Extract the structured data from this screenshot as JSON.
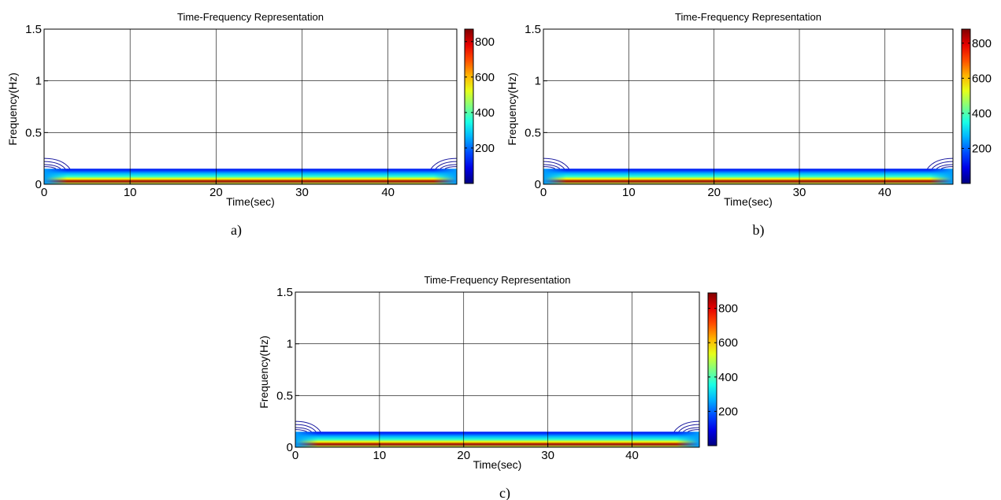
{
  "chart_data": [
    {
      "type": "heatmap",
      "title": "Time-Frequency Representation",
      "xlabel": "Time(sec)",
      "ylabel": "Frequency(Hz)",
      "caption": "a)",
      "xlim": [
        0,
        48
      ],
      "ylim": [
        0,
        1.5
      ],
      "xticks": [
        0,
        10,
        20,
        30,
        40
      ],
      "yticks": [
        0,
        0.5,
        1,
        1.5
      ],
      "grid": true,
      "colormap": "jet",
      "colorbar": {
        "ticks": [
          200,
          400,
          600,
          800
        ],
        "range": [
          0,
          870
        ]
      },
      "energy_band": {
        "freq_min": 0,
        "freq_max": 0.15,
        "peak_freq": 0.03,
        "peak_value": 850,
        "time_start": 0,
        "time_end": 48
      },
      "edge_contour_time_extent": 3
    },
    {
      "type": "heatmap",
      "title": "Time-Frequency Representation",
      "xlabel": "Time(sec)",
      "ylabel": "Frequency(Hz)",
      "caption": "b)",
      "xlim": [
        0,
        48
      ],
      "ylim": [
        0,
        1.5
      ],
      "xticks": [
        0,
        10,
        20,
        30,
        40
      ],
      "yticks": [
        0,
        0.5,
        1,
        1.5
      ],
      "grid": true,
      "colormap": "jet",
      "colorbar": {
        "ticks": [
          200,
          400,
          600,
          800
        ],
        "range": [
          0,
          880
        ]
      },
      "energy_band": {
        "freq_min": 0,
        "freq_max": 0.15,
        "peak_freq": 0.03,
        "peak_value": 860,
        "time_start": 0,
        "time_end": 48
      },
      "edge_contour_time_extent": 3
    },
    {
      "type": "heatmap",
      "title": "Time-Frequency Representation",
      "xlabel": "Time(sec)",
      "ylabel": "Frequency(Hz)",
      "caption": "c)",
      "xlim": [
        0,
        48
      ],
      "ylim": [
        0,
        1.5
      ],
      "xticks": [
        0,
        10,
        20,
        30,
        40
      ],
      "yticks": [
        0,
        0.5,
        1,
        1.5
      ],
      "grid": true,
      "colormap": "jet",
      "colorbar": {
        "ticks": [
          200,
          400,
          600,
          800
        ],
        "range": [
          0,
          890
        ]
      },
      "energy_band": {
        "freq_min": 0,
        "freq_max": 0.15,
        "peak_freq": 0.03,
        "peak_value": 870,
        "time_start": 0,
        "time_end": 48
      },
      "edge_contour_time_extent": 3
    }
  ]
}
